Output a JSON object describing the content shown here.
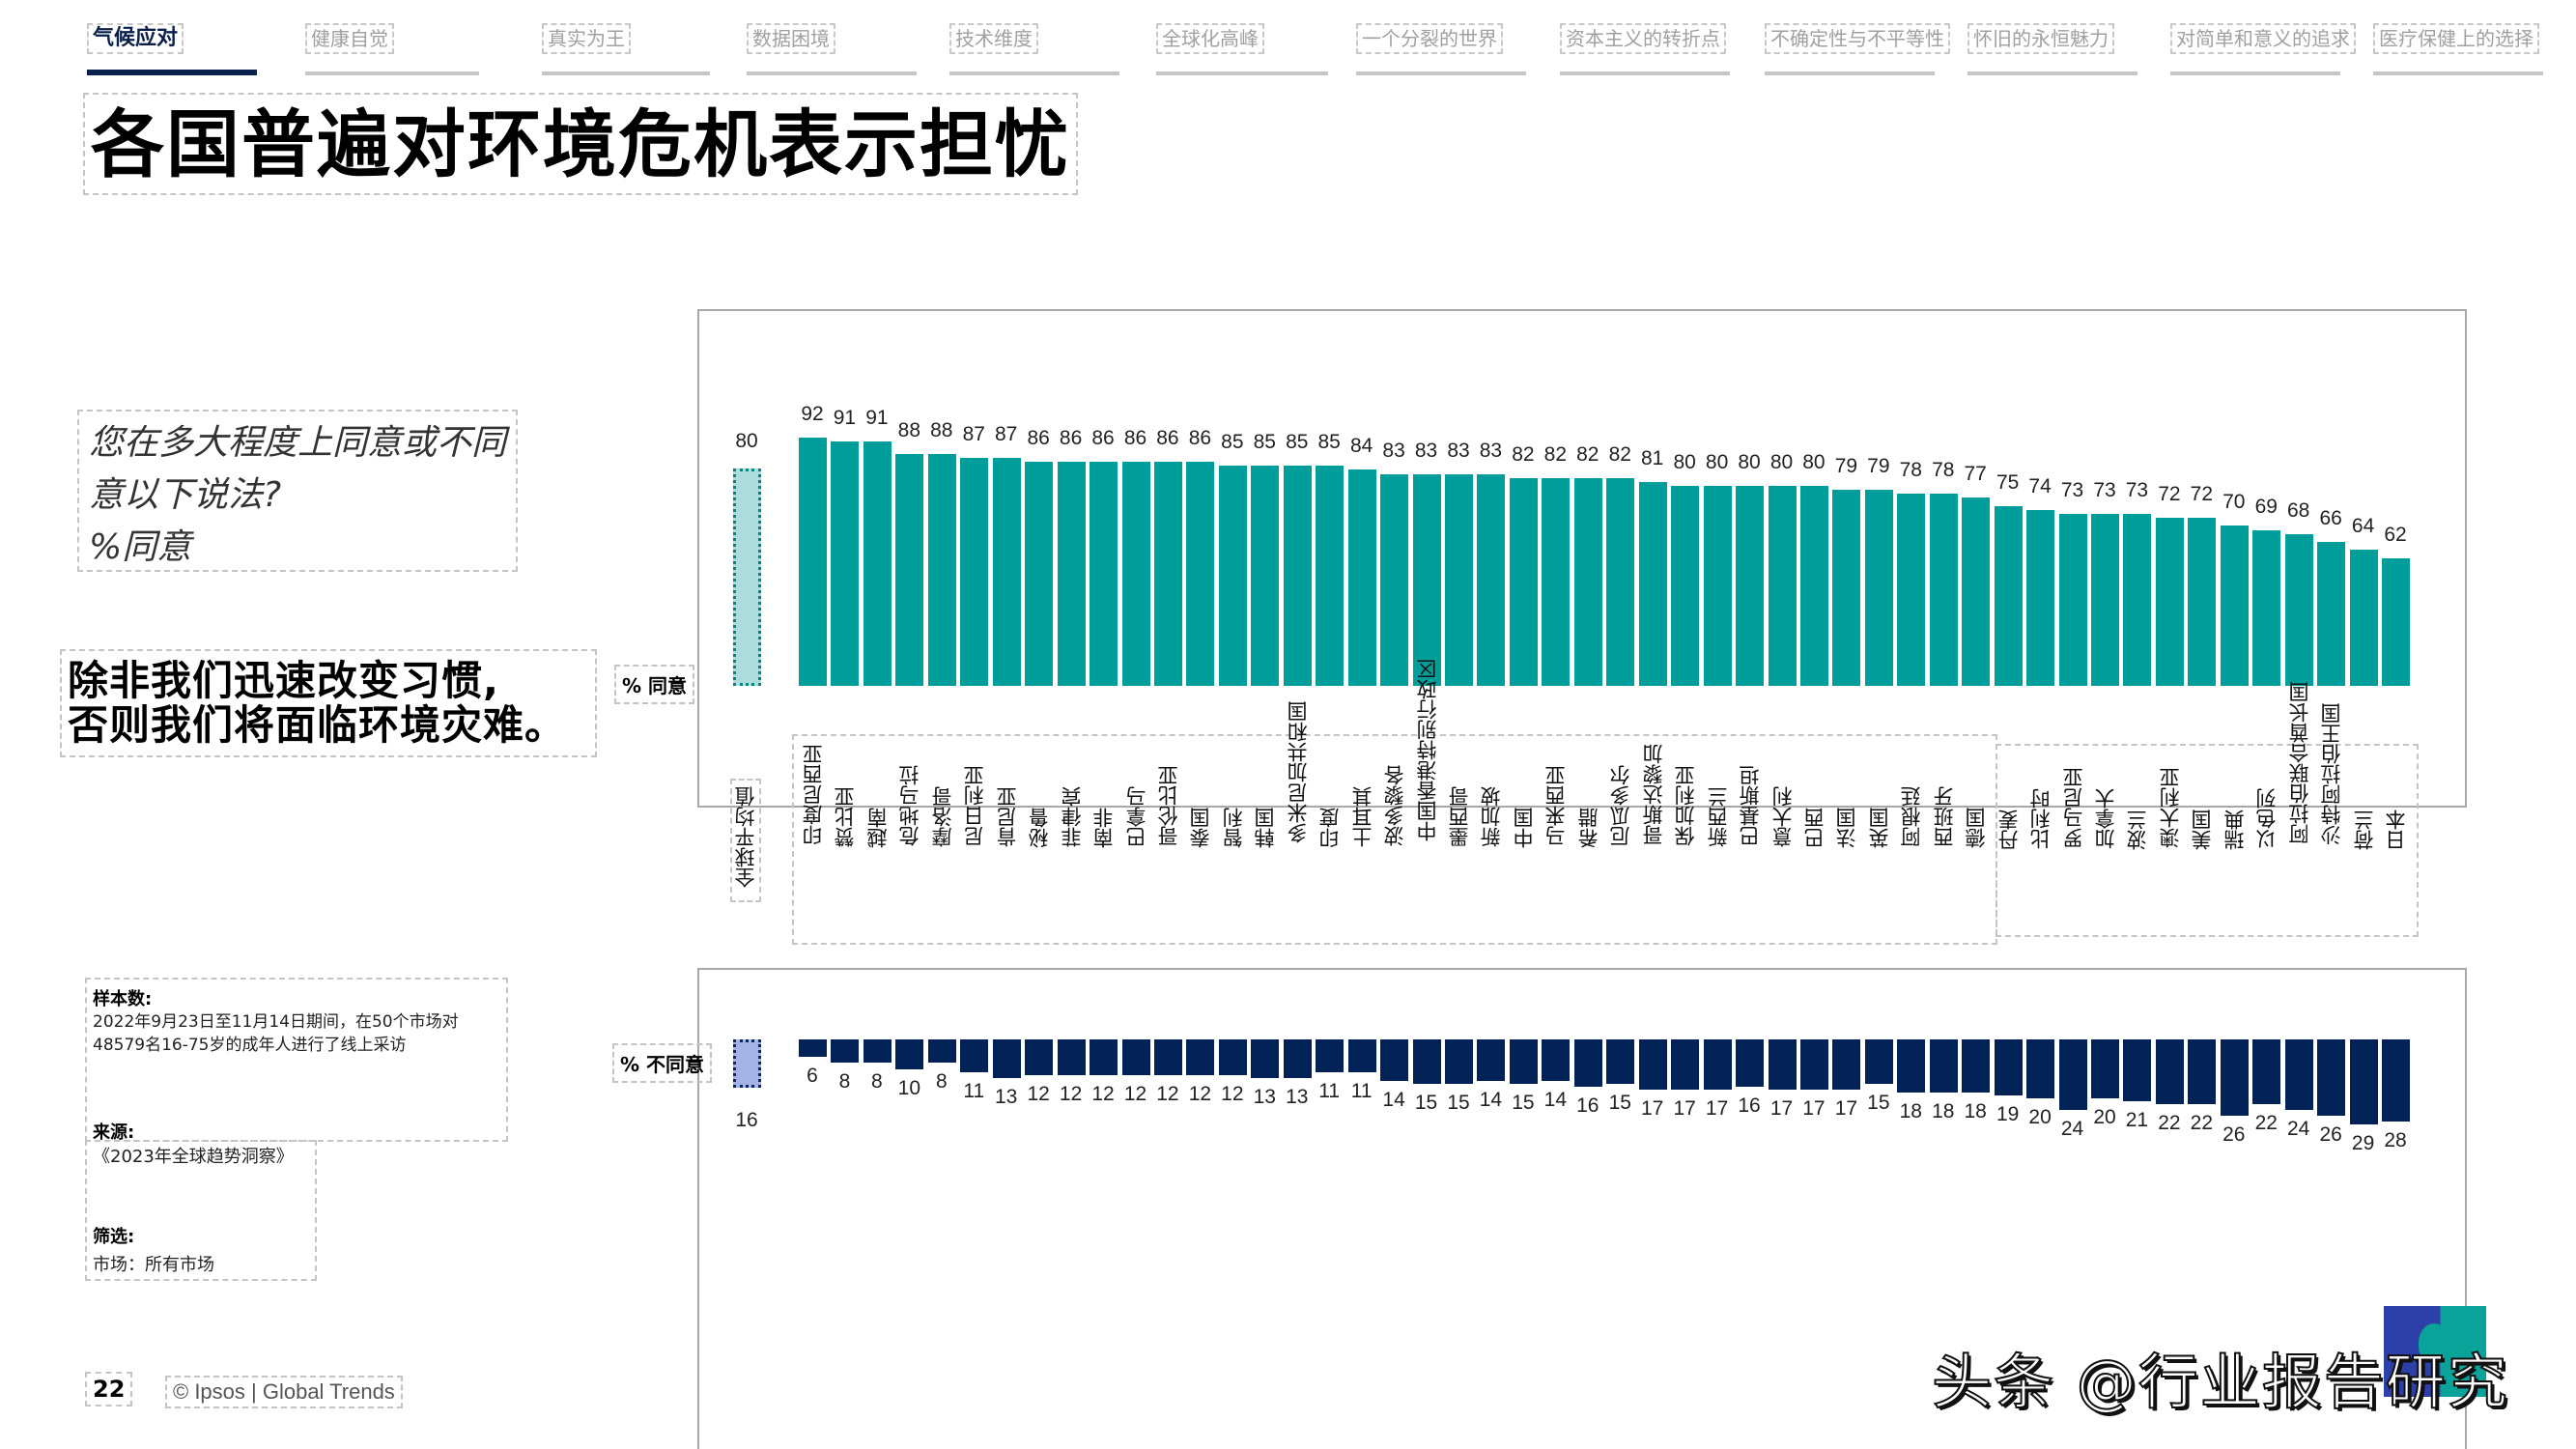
{
  "nav": {
    "items": [
      {
        "label": "气候应对",
        "active": true
      },
      {
        "label": "健康自觉",
        "active": false
      },
      {
        "label": "真实为王",
        "active": false
      },
      {
        "label": "数据困境",
        "active": false
      },
      {
        "label": "技术维度",
        "active": false
      },
      {
        "label": "全球化高峰",
        "active": false
      },
      {
        "label": "一个分裂的世界",
        "active": false
      },
      {
        "label": "资本主义的转折点",
        "active": false
      },
      {
        "label": "不确定性与不平等性",
        "active": false
      },
      {
        "label": "怀旧的永恒魅力",
        "active": false
      },
      {
        "label": "对简单和意义的追求",
        "active": false
      },
      {
        "label": "医疗保健上的选择",
        "active": false
      }
    ]
  },
  "page": {
    "title": "各国普遍对环境危机表示担忧",
    "question_lines": [
      "您在多大程度上同意或不同",
      "意以下说法?",
      "%同意"
    ],
    "statement_lines": [
      "除非我们迅速改变习惯,",
      "否则我们将面临环境灾难。"
    ],
    "agree_tag": "% 同意",
    "disagree_tag": "% 不同意",
    "avg_label": "全球平均值",
    "notes": {
      "sample_head": "样本数:",
      "sample_text_1": "2022年9月23日至11月14日期间，在50个市场对",
      "sample_text_2": "48579名16-75岁的成年人进行了线上采访",
      "source_head": "来源:",
      "source_text": "《2023年全球趋势洞察》",
      "filter_head": "筛选:",
      "filter_text": "市场：所有市场"
    },
    "page_number": "22",
    "copyright": "© Ipsos | Global Trends",
    "watermark": "头条 @行业报告研究"
  },
  "colors": {
    "agree": "#009e9a",
    "agree_avg": "#aedcdc",
    "disagree": "#022256",
    "disagree_avg": "#a5b3e4",
    "nav_active": "#0a2150"
  },
  "chart_data": {
    "type": "bar",
    "title": "除非我们迅速改变习惯，否则我们将面临环境灾难。",
    "subtitle": "您在多大程度上同意或不同意以下说法? %同意",
    "xlabel": "",
    "ylabel": "%",
    "legend": [
      "% 同意",
      "% 不同意"
    ],
    "grid": false,
    "global_average": {
      "label": "全球平均值",
      "agree": 80,
      "disagree": 16
    },
    "categories": [
      "印度尼西亚",
      "赞比亚",
      "越南",
      "危地马拉",
      "摩洛哥",
      "尼日利亚",
      "肯尼亚",
      "秘鲁",
      "菲律宾",
      "南非",
      "巴拿马",
      "哥伦比亚",
      "泰国",
      "智利",
      "韩国",
      "多米尼加共和国",
      "印度",
      "土耳其",
      "波多黎各",
      "中国香港特别行政区",
      "墨西哥",
      "新加坡",
      "中国",
      "马来西亚",
      "希腊",
      "厄瓜多尔",
      "哥斯达黎加",
      "保加利亚",
      "新西兰",
      "巴基斯坦",
      "意大利",
      "巴西",
      "法国",
      "英国",
      "阿根廷",
      "西班牙",
      "德国",
      "丹麦",
      "比利时",
      "罗马尼亚",
      "加拿大",
      "波兰",
      "澳大利亚",
      "美国",
      "瑞典",
      "以色列",
      "阿拉伯联合酋长国",
      "沙特阿拉伯王国",
      "荷兰",
      "日本"
    ],
    "series": [
      {
        "name": "% 同意",
        "values": [
          92,
          91,
          91,
          88,
          88,
          87,
          87,
          86,
          86,
          86,
          86,
          86,
          86,
          85,
          85,
          85,
          85,
          84,
          83,
          83,
          83,
          83,
          82,
          82,
          82,
          82,
          81,
          80,
          80,
          80,
          80,
          80,
          79,
          79,
          78,
          78,
          77,
          75,
          74,
          73,
          73,
          73,
          72,
          72,
          70,
          69,
          68,
          66,
          64,
          62
        ]
      },
      {
        "name": "% 不同意",
        "values": [
          6,
          8,
          8,
          10,
          8,
          11,
          13,
          12,
          12,
          12,
          12,
          12,
          12,
          12,
          13,
          13,
          11,
          11,
          14,
          15,
          15,
          14,
          15,
          14,
          16,
          15,
          17,
          17,
          17,
          16,
          17,
          17,
          17,
          15,
          18,
          18,
          18,
          19,
          20,
          24,
          20,
          21,
          22,
          22,
          26,
          22,
          24,
          26,
          29,
          28
        ]
      }
    ],
    "ylim": [
      0,
      100
    ]
  }
}
